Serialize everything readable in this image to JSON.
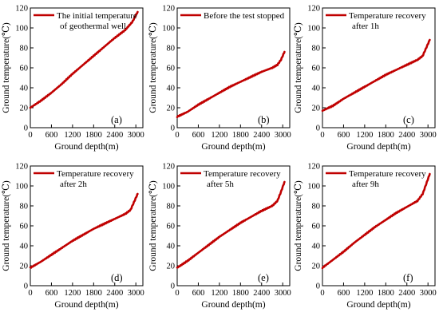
{
  "figure": {
    "xlabel": "Ground depth(m)",
    "ylabel": "Ground temperature(℃)"
  },
  "chart_data": [
    {
      "type": "line",
      "panel_label": "(a)",
      "legend": [
        "The initial temperature",
        "of geothermal well"
      ],
      "series": [
        {
          "name": "The initial temperature of geothermal well",
          "color": "#c00000",
          "x": [
            0,
            300,
            600,
            900,
            1200,
            1500,
            1800,
            2100,
            2400,
            2700,
            2900,
            3050
          ],
          "y": [
            20,
            27,
            35,
            44,
            54,
            63,
            72,
            81,
            90,
            98,
            106,
            116
          ]
        }
      ],
      "xlim": [
        0,
        3200
      ],
      "ylim": [
        0,
        120
      ],
      "xticks": [
        "0",
        "600",
        "1200",
        "1800",
        "2400",
        "3000"
      ],
      "yticks": [
        "0",
        "20",
        "40",
        "60",
        "80",
        "100",
        "120"
      ],
      "xlabel": "Ground depth(m)",
      "ylabel": "Ground temperature(℃)",
      "legend_position": "top-left",
      "grid": false
    },
    {
      "type": "line",
      "panel_label": "(b)",
      "legend": [
        "Before the test stopped"
      ],
      "series": [
        {
          "name": "Before the test stopped",
          "color": "#c00000",
          "x": [
            0,
            300,
            600,
            900,
            1200,
            1500,
            1800,
            2100,
            2400,
            2700,
            2850,
            2950,
            3050
          ],
          "y": [
            11,
            16,
            23,
            29,
            35,
            41,
            46,
            51,
            56,
            60,
            63,
            68,
            76
          ]
        }
      ],
      "xlim": [
        0,
        3200
      ],
      "ylim": [
        0,
        120
      ],
      "xticks": [
        "0",
        "600",
        "1200",
        "1800",
        "2400",
        "3000"
      ],
      "yticks": [
        "0",
        "20",
        "40",
        "60",
        "80",
        "100",
        "120"
      ],
      "xlabel": "Ground depth(m)",
      "ylabel": "Ground temperature(℃)",
      "legend_position": "top-left",
      "grid": false
    },
    {
      "type": "line",
      "panel_label": "(c)",
      "legend": [
        "Temperature recovery",
        "after 1h"
      ],
      "series": [
        {
          "name": "Temperature recovery after 1h",
          "color": "#c00000",
          "x": [
            0,
            300,
            600,
            900,
            1200,
            1500,
            1800,
            2100,
            2400,
            2700,
            2850,
            2950,
            3050
          ],
          "y": [
            17,
            22,
            29,
            35,
            41,
            47,
            53,
            58,
            63,
            68,
            72,
            80,
            88
          ]
        }
      ],
      "xlim": [
        0,
        3200
      ],
      "ylim": [
        0,
        120
      ],
      "xticks": [
        "0",
        "600",
        "1200",
        "1800",
        "2400",
        "3000"
      ],
      "yticks": [
        "0",
        "20",
        "40",
        "60",
        "80",
        "100",
        "120"
      ],
      "xlabel": "Ground depth(m)",
      "ylabel": "Ground temperature(℃)",
      "legend_position": "top-left",
      "grid": false
    },
    {
      "type": "line",
      "panel_label": "(d)",
      "legend": [
        "Temperature recovery",
        "after 2h"
      ],
      "series": [
        {
          "name": "Temperature recovery after 2h",
          "color": "#c00000",
          "x": [
            0,
            300,
            600,
            900,
            1200,
            1500,
            1800,
            2100,
            2400,
            2700,
            2850,
            2950,
            3050
          ],
          "y": [
            18,
            24,
            31,
            38,
            45,
            51,
            57,
            62,
            67,
            72,
            76,
            84,
            92
          ]
        }
      ],
      "xlim": [
        0,
        3200
      ],
      "ylim": [
        0,
        120
      ],
      "xticks": [
        "0",
        "600",
        "1200",
        "1800",
        "2400",
        "3000"
      ],
      "yticks": [
        "0",
        "20",
        "40",
        "60",
        "80",
        "100",
        "120"
      ],
      "xlabel": "Ground depth(m)",
      "ylabel": "Ground temperature(℃)",
      "legend_position": "top-left",
      "grid": false
    },
    {
      "type": "line",
      "panel_label": "(e)",
      "legend": [
        "Temperature recovery",
        "after 5h"
      ],
      "series": [
        {
          "name": "Temperature recovery after 5h",
          "color": "#c00000",
          "x": [
            0,
            300,
            600,
            900,
            1200,
            1500,
            1800,
            2100,
            2400,
            2700,
            2850,
            2950,
            3050
          ],
          "y": [
            18,
            25,
            33,
            41,
            49,
            56,
            63,
            69,
            75,
            80,
            85,
            94,
            104
          ]
        }
      ],
      "xlim": [
        0,
        3200
      ],
      "ylim": [
        0,
        120
      ],
      "xticks": [
        "0",
        "600",
        "1200",
        "1800",
        "2400",
        "3000"
      ],
      "yticks": [
        "0",
        "20",
        "40",
        "60",
        "80",
        "100",
        "120"
      ],
      "xlabel": "Ground depth(m)",
      "ylabel": "Ground temperature(℃)",
      "legend_position": "top-left",
      "grid": false
    },
    {
      "type": "line",
      "panel_label": "(f)",
      "legend": [
        "Temperature recovery",
        "after 9h"
      ],
      "series": [
        {
          "name": "Temperature recovery after 9h",
          "color": "#c00000",
          "x": [
            0,
            300,
            600,
            900,
            1200,
            1500,
            1800,
            2100,
            2400,
            2700,
            2850,
            2950,
            3050
          ],
          "y": [
            18,
            26,
            34,
            43,
            51,
            59,
            66,
            73,
            79,
            85,
            92,
            102,
            112
          ]
        }
      ],
      "xlim": [
        0,
        3200
      ],
      "ylim": [
        0,
        120
      ],
      "xticks": [
        "0",
        "600",
        "1200",
        "1800",
        "2400",
        "3000"
      ],
      "yticks": [
        "0",
        "20",
        "40",
        "60",
        "80",
        "100",
        "120"
      ],
      "xlabel": "Ground depth(m)",
      "ylabel": "Ground temperature(℃)",
      "legend_position": "top-left",
      "grid": false
    }
  ]
}
